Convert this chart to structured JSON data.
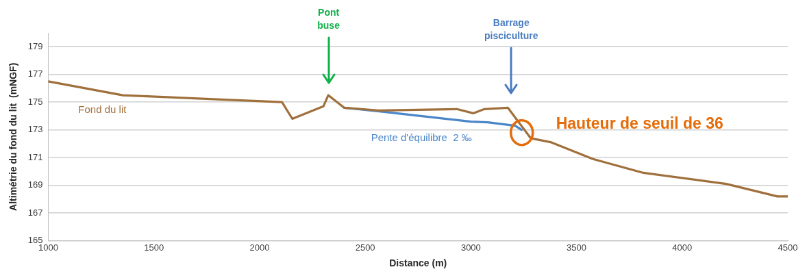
{
  "chart_data": {
    "type": "line",
    "xlabel": "Distance (m)",
    "ylabel": "Altimétrie du fond du lit  (mNGF)",
    "xlim": [
      1000,
      4500
    ],
    "xticks": [
      1000,
      1500,
      2000,
      2500,
      3000,
      3500,
      4000,
      4500
    ],
    "ylim": [
      165,
      180
    ],
    "yticks": [
      165,
      167,
      169,
      171,
      173,
      175,
      177,
      179
    ],
    "grid": "y",
    "legend": false,
    "marker": "none",
    "line_style": "solid",
    "series": [
      {
        "name": "Fond du lit",
        "color": "#a0703c",
        "x": [
          1000,
          1353,
          2106,
          2155,
          2302,
          2325,
          2400,
          2564,
          2933,
          3011,
          3064,
          3175,
          3283,
          3381,
          3578,
          3817,
          4209,
          4451,
          4500
        ],
        "values": [
          176.5,
          175.5,
          175.0,
          173.8,
          174.7,
          175.5,
          174.6,
          174.4,
          174.5,
          174.2,
          174.5,
          174.6,
          172.4,
          172.1,
          170.9,
          169.9,
          169.1,
          168.2,
          168.2
        ]
      },
      {
        "name": "Pente d'équilibre  2 ‰",
        "color": "#4a86c8",
        "x": [
          2400,
          2560,
          3000,
          3080,
          3210,
          3240
        ],
        "values": [
          174.6,
          174.35,
          173.6,
          173.55,
          173.3,
          173.0
        ]
      }
    ],
    "annotations": [
      "Pont buse",
      "Barrage pisciculture",
      {
        "text": "Hauteur de seuil de 36",
        "x": 3241,
        "y": 172.8
      }
    ]
  }
}
